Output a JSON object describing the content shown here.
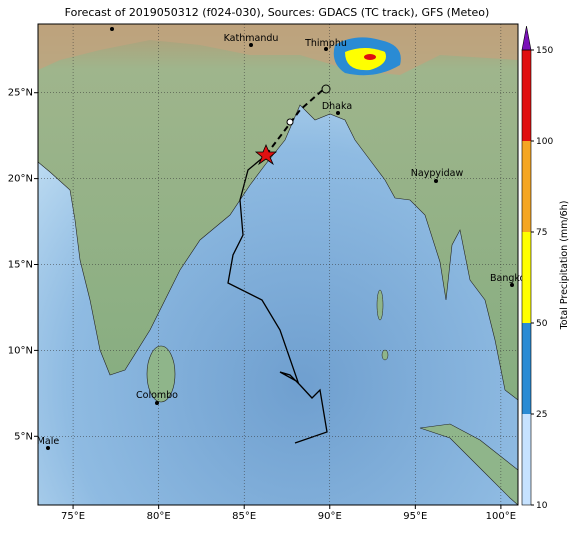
{
  "title": "Forecast of 2019050312 (f024-030), Sources: GDACS (TC track), GFS (Meteo)",
  "lon_axis": {
    "lim": [
      72.95,
      101
    ],
    "ticks": [
      {
        "value": 75,
        "label": "75°E"
      },
      {
        "value": 80,
        "label": "80°E"
      },
      {
        "value": 85,
        "label": "85°E"
      },
      {
        "value": 90,
        "label": "90°E"
      },
      {
        "value": 95,
        "label": "95°E"
      },
      {
        "value": 100,
        "label": "100°E"
      }
    ]
  },
  "lat_axis": {
    "lim": [
      1,
      29
    ],
    "ticks": [
      {
        "value": 5,
        "label": "5°N"
      },
      {
        "value": 10,
        "label": "10°N"
      },
      {
        "value": 15,
        "label": "15°N"
      },
      {
        "value": 20,
        "label": "20°N"
      },
      {
        "value": 25,
        "label": "25°N"
      }
    ]
  },
  "cities": [
    "Kathmandu",
    "Thimphu",
    "Dhaka",
    "Naypyidaw",
    "Bangkok",
    "Colombo",
    "Male"
  ],
  "colorbar": {
    "label": "Total Precipitation (mm/6h)",
    "ticks": [
      10,
      25,
      50,
      75,
      100,
      150
    ],
    "colors": [
      "#c6e2ff",
      "#2a8bd4",
      "#ffff00",
      "#f5a623",
      "#e01010"
    ],
    "extend_color": "#7a10b8"
  }
}
